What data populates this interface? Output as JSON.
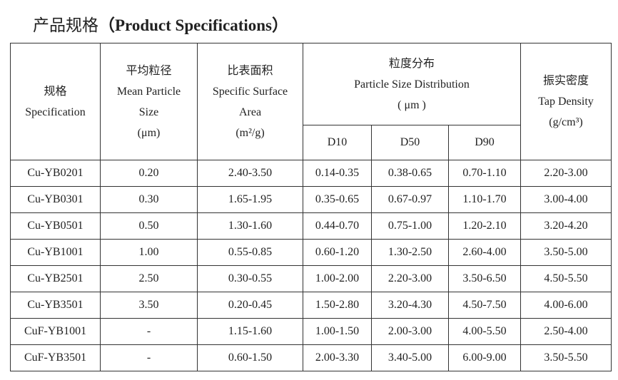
{
  "header": {
    "title_zh": "产品规格",
    "title_en": "（Product Specifications）"
  },
  "table": {
    "columns": [
      {
        "lines": [
          "规格",
          "Specification"
        ]
      },
      {
        "lines": [
          "平均粒径",
          "Mean Particle",
          "Size",
          "(μm)"
        ]
      },
      {
        "lines": [
          "比表面积",
          "Specific Surface",
          "Area",
          "(m²/g)"
        ]
      },
      {
        "lines": [
          "粒度分布",
          "Particle Size Distribution",
          "( μm )"
        ],
        "sub": [
          "D10",
          "D50",
          "D90"
        ]
      },
      {
        "lines": [
          "振实密度",
          "Tap Density",
          "(g/cm³)"
        ]
      }
    ],
    "rows": [
      [
        "Cu-YB0201",
        "0.20",
        "2.40-3.50",
        "0.14-0.35",
        "0.38-0.65",
        "0.70-1.10",
        "2.20-3.00"
      ],
      [
        "Cu-YB0301",
        "0.30",
        "1.65-1.95",
        "0.35-0.65",
        "0.67-0.97",
        "1.10-1.70",
        "3.00-4.00"
      ],
      [
        "Cu-YB0501",
        "0.50",
        "1.30-1.60",
        "0.44-0.70",
        "0.75-1.00",
        "1.20-2.10",
        "3.20-4.20"
      ],
      [
        "Cu-YB1001",
        "1.00",
        "0.55-0.85",
        "0.60-1.20",
        "1.30-2.50",
        "2.60-4.00",
        "3.50-5.00"
      ],
      [
        "Cu-YB2501",
        "2.50",
        "0.30-0.55",
        "1.00-2.00",
        "2.20-3.00",
        "3.50-6.50",
        "4.50-5.50"
      ],
      [
        "Cu-YB3501",
        "3.50",
        "0.20-0.45",
        "1.50-2.80",
        "3.20-4.30",
        "4.50-7.50",
        "4.00-6.00"
      ],
      [
        "CuF-YB1001",
        "-",
        "1.15-1.60",
        "1.00-1.50",
        "2.00-3.00",
        "4.00-5.50",
        "2.50-4.00"
      ],
      [
        "CuF-YB3501",
        "-",
        "0.60-1.50",
        "2.00-3.30",
        "3.40-5.00",
        "6.00-9.00",
        "3.50-5.50"
      ]
    ]
  }
}
